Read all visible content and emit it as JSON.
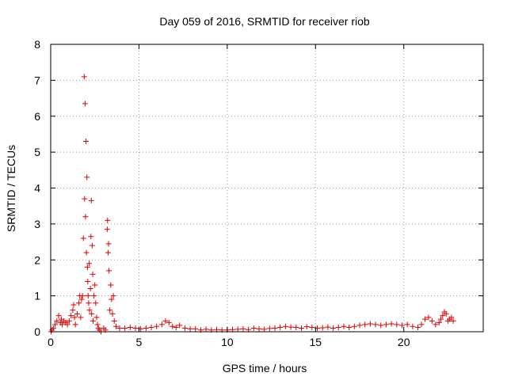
{
  "chart_data": {
    "type": "scatter",
    "title": "Day 059 of 2016, SRMTID for receiver riob",
    "xlabel": "GPS time / hours",
    "ylabel": "SRMTID / TECUs",
    "xlim": [
      0,
      24.5
    ],
    "ylim": [
      0,
      8
    ],
    "xticks": [
      0,
      5,
      10,
      15,
      20
    ],
    "yticks": [
      0,
      1,
      2,
      3,
      4,
      5,
      6,
      7,
      8
    ],
    "xtick_labels": [
      "0",
      "5",
      "10",
      "15",
      "20"
    ],
    "ytick_labels": [
      "0",
      "1",
      "2",
      "3",
      "4",
      "5",
      "6",
      "7",
      "8"
    ],
    "grid": true,
    "marker": "+",
    "series": [
      {
        "name": "SRMTID",
        "color": "#e00000",
        "x": [
          0.02,
          0.08,
          0.15,
          0.25,
          0.35,
          0.45,
          0.55,
          0.6,
          0.65,
          0.75,
          0.85,
          0.95,
          1.05,
          1.15,
          1.25,
          1.3,
          1.35,
          1.4,
          1.5,
          1.6,
          1.65,
          1.7,
          1.75,
          1.8,
          1.85,
          1.9,
          1.92,
          1.95,
          1.97,
          2.0,
          2.02,
          2.05,
          2.08,
          2.1,
          2.12,
          2.15,
          2.18,
          2.2,
          2.25,
          2.28,
          2.3,
          2.32,
          2.35,
          2.38,
          2.4,
          2.45,
          2.5,
          2.55,
          2.6,
          2.65,
          2.7,
          2.75,
          2.85,
          3.0,
          3.1,
          3.2,
          3.22,
          3.25,
          3.28,
          3.3,
          3.35,
          3.4,
          3.45,
          3.5,
          3.55,
          3.6,
          3.7,
          3.9,
          4.2,
          4.5,
          4.8,
          5.1,
          5.4,
          5.7,
          6.0,
          6.3,
          6.5,
          6.7,
          6.9,
          7.1,
          7.3,
          7.6,
          7.9,
          8.2,
          8.5,
          8.8,
          9.1,
          9.4,
          9.7,
          10.0,
          10.3,
          10.6,
          10.9,
          11.2,
          11.5,
          11.8,
          12.1,
          12.4,
          12.7,
          13.0,
          13.3,
          13.6,
          13.9,
          14.2,
          14.5,
          14.8,
          15.1,
          15.4,
          15.7,
          16.0,
          16.3,
          16.6,
          16.9,
          17.2,
          17.5,
          17.8,
          18.1,
          18.4,
          18.7,
          19.0,
          19.3,
          19.6,
          19.9,
          20.2,
          20.5,
          20.8,
          21.0,
          21.2,
          21.4,
          21.6,
          21.8,
          22.0,
          22.1,
          22.2,
          22.3,
          22.4,
          22.5,
          22.6,
          22.7,
          22.8
        ],
        "y": [
          0.0,
          0.05,
          0.1,
          0.2,
          0.3,
          0.45,
          0.25,
          0.35,
          0.2,
          0.3,
          0.25,
          0.2,
          0.3,
          0.45,
          0.6,
          0.75,
          0.4,
          0.2,
          0.5,
          0.8,
          1.0,
          0.4,
          0.9,
          1.0,
          2.6,
          7.1,
          3.7,
          6.35,
          3.2,
          5.3,
          2.2,
          4.3,
          1.8,
          1.4,
          1.0,
          0.8,
          1.9,
          0.6,
          1.2,
          2.65,
          3.65,
          0.5,
          2.4,
          1.6,
          0.3,
          1.0,
          1.3,
          0.8,
          0.4,
          0.2,
          0.1,
          0.05,
          0.0,
          0.1,
          0.05,
          2.85,
          3.1,
          2.2,
          2.45,
          1.7,
          0.6,
          1.3,
          0.9,
          0.5,
          1.0,
          0.3,
          0.15,
          0.1,
          0.1,
          0.12,
          0.1,
          0.08,
          0.1,
          0.12,
          0.15,
          0.2,
          0.3,
          0.25,
          0.15,
          0.12,
          0.18,
          0.1,
          0.08,
          0.08,
          0.05,
          0.07,
          0.05,
          0.06,
          0.05,
          0.05,
          0.06,
          0.07,
          0.08,
          0.06,
          0.1,
          0.08,
          0.07,
          0.09,
          0.1,
          0.12,
          0.15,
          0.13,
          0.12,
          0.1,
          0.14,
          0.12,
          0.1,
          0.11,
          0.13,
          0.1,
          0.12,
          0.15,
          0.12,
          0.15,
          0.18,
          0.2,
          0.22,
          0.2,
          0.18,
          0.2,
          0.22,
          0.2,
          0.18,
          0.2,
          0.15,
          0.12,
          0.2,
          0.35,
          0.4,
          0.3,
          0.2,
          0.25,
          0.35,
          0.45,
          0.55,
          0.5,
          0.3,
          0.35,
          0.4,
          0.3
        ]
      }
    ]
  }
}
